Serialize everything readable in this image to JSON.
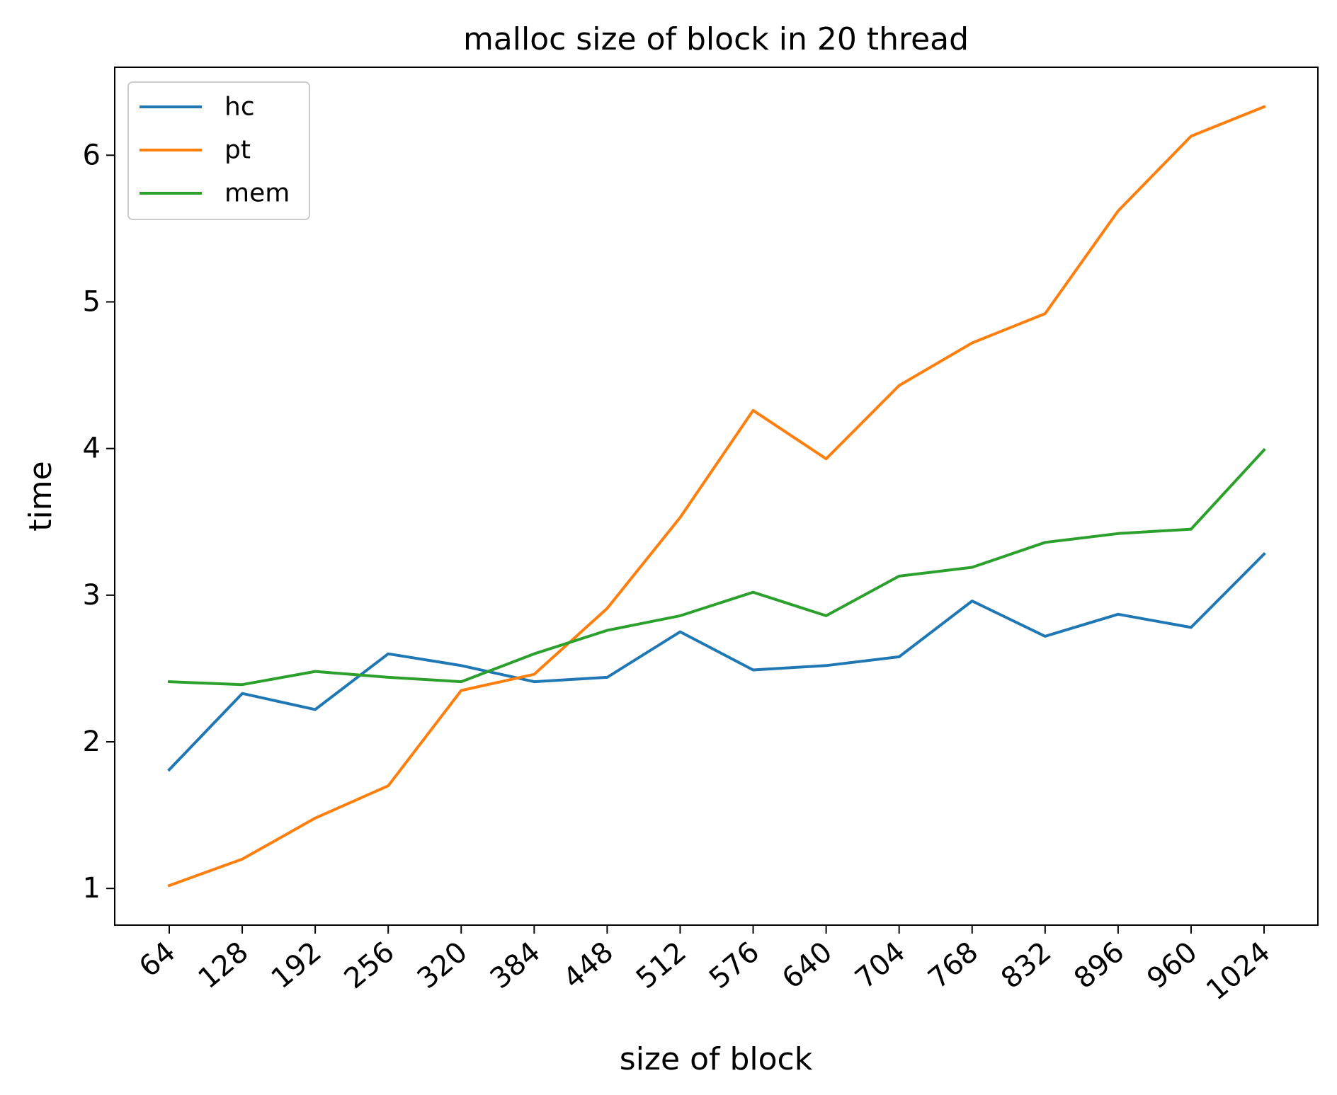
{
  "chart_data": {
    "type": "line",
    "title": "malloc size of block in 20 thread",
    "xlabel": "size of block",
    "ylabel": "time",
    "categories": [
      "64",
      "128",
      "192",
      "256",
      "320",
      "384",
      "448",
      "512",
      "576",
      "640",
      "704",
      "768",
      "832",
      "896",
      "960",
      "1024"
    ],
    "x": [
      64,
      128,
      192,
      256,
      320,
      384,
      448,
      512,
      576,
      640,
      704,
      768,
      832,
      896,
      960,
      1024
    ],
    "yticks": [
      1,
      2,
      3,
      4,
      5,
      6
    ],
    "ylim": [
      0.75,
      6.6
    ],
    "grid": false,
    "legend_position": "upper-left",
    "series": [
      {
        "name": "hc",
        "color": "#1f77b4",
        "values": [
          1.81,
          2.33,
          2.22,
          2.6,
          2.52,
          2.41,
          2.44,
          2.75,
          2.49,
          2.52,
          2.58,
          2.96,
          2.72,
          2.87,
          2.78,
          3.28
        ]
      },
      {
        "name": "pt",
        "color": "#ff7f0e",
        "values": [
          1.02,
          1.2,
          1.48,
          1.7,
          2.35,
          2.46,
          2.91,
          3.53,
          4.26,
          3.93,
          4.43,
          4.72,
          4.92,
          5.62,
          6.13,
          6.33
        ]
      },
      {
        "name": "mem",
        "color": "#2ca02c",
        "values": [
          2.41,
          2.39,
          2.48,
          2.44,
          2.41,
          2.6,
          2.76,
          2.86,
          3.02,
          2.86,
          3.13,
          3.19,
          3.36,
          3.42,
          3.45,
          3.99
        ]
      }
    ]
  }
}
